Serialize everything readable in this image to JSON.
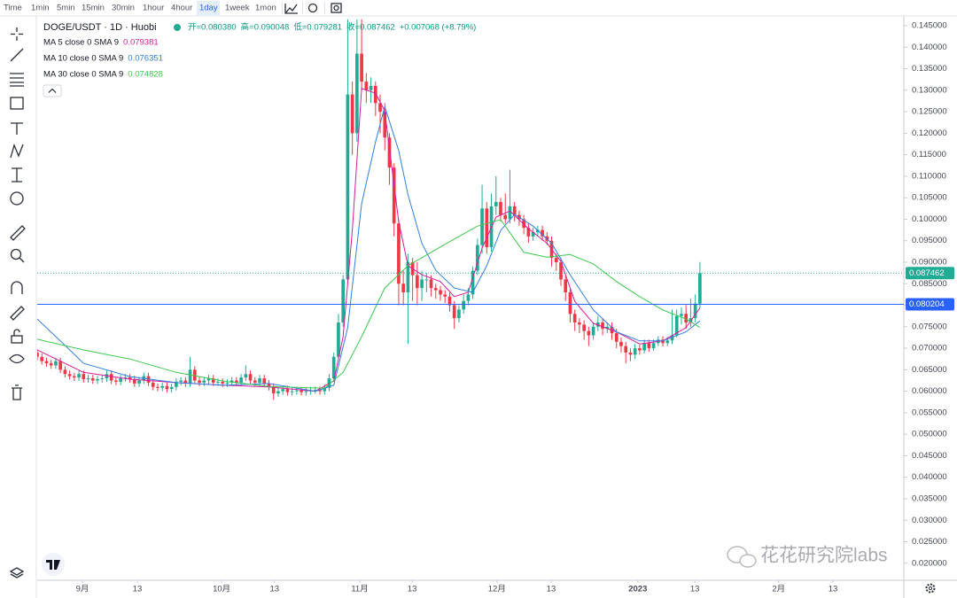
{
  "toolbar": {
    "items": [
      "Time",
      "1min",
      "5min",
      "15min",
      "30min",
      "1hour",
      "4hour",
      "1day",
      "1week",
      "1mon"
    ],
    "active": 7
  },
  "watermark": "花花研究院labs",
  "chart_data": {
    "type": "candlestick",
    "title": "DOGE/USDT · 1D · Huobi",
    "ohlc_legend": [
      "开=0.080380",
      "高=0.090048",
      "低=0.079281",
      "收=0.087462",
      "+0.007068 (+8.79%)"
    ],
    "up_color": "#22ab94",
    "down_color": "#f23645",
    "grid": false,
    "open": [
      0.069,
      0.068,
      0.067,
      0.0665,
      0.066,
      0.067,
      0.065,
      0.064,
      0.0635,
      0.0632,
      0.064,
      0.0628,
      0.063,
      0.0625,
      0.0628,
      0.063,
      0.064,
      0.0625,
      0.0622,
      0.063,
      0.0632,
      0.0628,
      0.0618,
      0.0625,
      0.0635,
      0.062,
      0.061,
      0.0608,
      0.0612,
      0.0605,
      0.061,
      0.0622,
      0.0625,
      0.0618,
      0.065,
      0.0625,
      0.062,
      0.0625,
      0.063,
      0.062,
      0.0622,
      0.0618,
      0.062,
      0.0625,
      0.062,
      0.0632,
      0.064,
      0.0625,
      0.062,
      0.063,
      0.0618,
      0.061,
      0.0595,
      0.06,
      0.0605,
      0.0598,
      0.06,
      0.0602,
      0.0598,
      0.06,
      0.0602,
      0.0603,
      0.06,
      0.0608,
      0.063,
      0.068,
      0.076,
      0.086,
      0.129,
      0.12,
      0.1385,
      0.132,
      0.13,
      0.131,
      0.127,
      0.125,
      0.119,
      0.112,
      0.099,
      0.085,
      0.083,
      0.09,
      0.087,
      0.084,
      0.086,
      0.086,
      0.084,
      0.0835,
      0.0825,
      0.082,
      0.08,
      0.077,
      0.079,
      0.081,
      0.0825,
      0.088,
      0.094,
      0.1025,
      0.0935,
      0.103,
      0.104,
      0.101,
      0.1,
      0.103,
      0.101,
      0.1,
      0.098,
      0.096,
      0.097,
      0.0975,
      0.096,
      0.095,
      0.091,
      0.09,
      0.086,
      0.083,
      0.078,
      0.076,
      0.0755,
      0.074,
      0.073,
      0.075,
      0.076,
      0.0745,
      0.075,
      0.0735,
      0.0715,
      0.0705,
      0.069,
      0.0685,
      0.07,
      0.0695,
      0.0712,
      0.07,
      0.0712,
      0.072,
      0.0712,
      0.0718,
      0.073,
      0.0775,
      0.078,
      0.076,
      0.077,
      0.08038
    ],
    "high": [
      0.0698,
      0.0688,
      0.0678,
      0.0673,
      0.0678,
      0.0678,
      0.0658,
      0.0648,
      0.0643,
      0.0648,
      0.0648,
      0.0638,
      0.0638,
      0.0636,
      0.0638,
      0.0648,
      0.0648,
      0.0633,
      0.0638,
      0.064,
      0.064,
      0.0636,
      0.0633,
      0.0643,
      0.0643,
      0.0628,
      0.0618,
      0.062,
      0.062,
      0.0618,
      0.063,
      0.0633,
      0.0633,
      0.068,
      0.0658,
      0.0633,
      0.0633,
      0.0638,
      0.0638,
      0.063,
      0.063,
      0.0628,
      0.0633,
      0.0633,
      0.064,
      0.066,
      0.0648,
      0.0633,
      0.0638,
      0.0638,
      0.0626,
      0.0618,
      0.0608,
      0.0613,
      0.0613,
      0.0608,
      0.061,
      0.061,
      0.0608,
      0.061,
      0.0611,
      0.0611,
      0.0616,
      0.064,
      0.069,
      0.078,
      0.087,
      0.1465,
      0.132,
      0.1465,
      0.1465,
      0.134,
      0.133,
      0.132,
      0.129,
      0.127,
      0.12,
      0.113,
      0.1,
      0.088,
      0.092,
      0.091,
      0.09,
      0.088,
      0.0875,
      0.087,
      0.085,
      0.0845,
      0.0835,
      0.083,
      0.081,
      0.08,
      0.0825,
      0.084,
      0.089,
      0.0955,
      0.108,
      0.104,
      0.106,
      0.11,
      0.105,
      0.106,
      0.1115,
      0.104,
      0.102,
      0.101,
      0.099,
      0.098,
      0.0985,
      0.0985,
      0.097,
      0.096,
      0.092,
      0.091,
      0.087,
      0.084,
      0.079,
      0.077,
      0.0765,
      0.075,
      0.076,
      0.0775,
      0.077,
      0.076,
      0.076,
      0.0745,
      0.0725,
      0.0715,
      0.07,
      0.071,
      0.0708,
      0.072,
      0.072,
      0.072,
      0.0728,
      0.0728,
      0.0726,
      0.079,
      0.079,
      0.0795,
      0.08,
      0.0815,
      0.0825,
      0.090048
    ],
    "low": [
      0.0672,
      0.0662,
      0.0657,
      0.0652,
      0.0652,
      0.0642,
      0.0632,
      0.0627,
      0.0624,
      0.0624,
      0.062,
      0.062,
      0.0617,
      0.0617,
      0.062,
      0.0622,
      0.0617,
      0.0614,
      0.0614,
      0.0622,
      0.062,
      0.061,
      0.061,
      0.0617,
      0.0612,
      0.0602,
      0.06,
      0.06,
      0.0597,
      0.0597,
      0.0602,
      0.0614,
      0.061,
      0.061,
      0.0617,
      0.0612,
      0.0612,
      0.0617,
      0.0612,
      0.0612,
      0.061,
      0.061,
      0.0612,
      0.0612,
      0.0612,
      0.0624,
      0.0617,
      0.0612,
      0.0612,
      0.061,
      0.0602,
      0.058,
      0.0587,
      0.0592,
      0.059,
      0.059,
      0.0592,
      0.059,
      0.059,
      0.0592,
      0.0594,
      0.0592,
      0.0592,
      0.06,
      0.0622,
      0.0672,
      0.075,
      0.085,
      0.115,
      0.118,
      0.13,
      0.127,
      0.127,
      0.124,
      0.12,
      0.116,
      0.108,
      0.096,
      0.08,
      0.08,
      0.071,
      0.081,
      0.08,
      0.081,
      0.083,
      0.082,
      0.0815,
      0.081,
      0.0805,
      0.0785,
      0.0745,
      0.076,
      0.078,
      0.08,
      0.0815,
      0.087,
      0.092,
      0.092,
      0.0925,
      0.101,
      0.0995,
      0.099,
      0.099,
      0.0995,
      0.0985,
      0.0965,
      0.0945,
      0.095,
      0.096,
      0.095,
      0.094,
      0.089,
      0.088,
      0.0845,
      0.081,
      0.076,
      0.074,
      0.0735,
      0.072,
      0.0705,
      0.072,
      0.074,
      0.073,
      0.0735,
      0.072,
      0.07,
      0.069,
      0.0665,
      0.067,
      0.0675,
      0.0685,
      0.0688,
      0.0692,
      0.0694,
      0.0705,
      0.0704,
      0.0705,
      0.071,
      0.0725,
      0.0755,
      0.0745,
      0.075,
      0.076,
      0.079281
    ],
    "close": [
      0.068,
      0.067,
      0.0665,
      0.066,
      0.067,
      0.065,
      0.064,
      0.0635,
      0.0632,
      0.064,
      0.0628,
      0.063,
      0.0625,
      0.0628,
      0.063,
      0.064,
      0.0625,
      0.0622,
      0.063,
      0.0632,
      0.0628,
      0.0618,
      0.0625,
      0.0635,
      0.062,
      0.061,
      0.0608,
      0.0612,
      0.0605,
      0.061,
      0.0622,
      0.0625,
      0.0618,
      0.065,
      0.0625,
      0.062,
      0.0625,
      0.063,
      0.062,
      0.0622,
      0.0618,
      0.062,
      0.0625,
      0.062,
      0.0632,
      0.064,
      0.0625,
      0.062,
      0.063,
      0.0618,
      0.061,
      0.0595,
      0.06,
      0.0605,
      0.0598,
      0.06,
      0.0602,
      0.0598,
      0.06,
      0.0602,
      0.0603,
      0.06,
      0.0608,
      0.063,
      0.068,
      0.076,
      0.086,
      0.129,
      0.12,
      0.1385,
      0.132,
      0.13,
      0.131,
      0.127,
      0.125,
      0.119,
      0.112,
      0.099,
      0.085,
      0.083,
      0.09,
      0.087,
      0.084,
      0.086,
      0.086,
      0.084,
      0.0835,
      0.0825,
      0.082,
      0.08,
      0.077,
      0.079,
      0.081,
      0.0825,
      0.088,
      0.094,
      0.1025,
      0.0935,
      0.103,
      0.104,
      0.101,
      0.1,
      0.103,
      0.101,
      0.1,
      0.098,
      0.096,
      0.097,
      0.0975,
      0.096,
      0.095,
      0.091,
      0.09,
      0.086,
      0.083,
      0.078,
      0.076,
      0.0755,
      0.074,
      0.073,
      0.075,
      0.076,
      0.0745,
      0.075,
      0.0735,
      0.0715,
      0.0705,
      0.069,
      0.0685,
      0.07,
      0.0695,
      0.0712,
      0.07,
      0.0712,
      0.072,
      0.0712,
      0.0718,
      0.073,
      0.0775,
      0.078,
      0.076,
      0.077,
      0.0804,
      0.087462
    ],
    "ma_lines": [
      {
        "name": "MA 5 close 0 SMA 9",
        "color": "#d81b9c",
        "last_value": 0.079381,
        "x": [
          0,
          10,
          20,
          30,
          40,
          50,
          60,
          64,
          66,
          68,
          70,
          73,
          75,
          78,
          80,
          83,
          87,
          90,
          93,
          96,
          99,
          102,
          106,
          110,
          113,
          116,
          120,
          125,
          130,
          135,
          140,
          143
        ],
        "values": [
          0.0696,
          0.0644,
          0.0628,
          0.062,
          0.0614,
          0.061,
          0.06,
          0.0624,
          0.0727,
          0.0974,
          0.1304,
          0.1293,
          0.1252,
          0.0995,
          0.0892,
          0.0871,
          0.0855,
          0.082,
          0.083,
          0.0933,
          0.1005,
          0.1019,
          0.0978,
          0.0944,
          0.0902,
          0.0809,
          0.0758,
          0.0738,
          0.071,
          0.0717,
          0.0748,
          0.079381
        ]
      },
      {
        "name": "MA 10 close 0 SMA 9",
        "color": "#2f7fe0",
        "last_value": 0.076351,
        "x": [
          0,
          5,
          10,
          20,
          30,
          40,
          50,
          60,
          64,
          67,
          70,
          73,
          75,
          78,
          80,
          83,
          86,
          90,
          94,
          97,
          100,
          103,
          107,
          111,
          115,
          120,
          125,
          130,
          135,
          140,
          143
        ],
        "values": [
          0.0768,
          0.0717,
          0.0665,
          0.0634,
          0.062,
          0.0614,
          0.0618,
          0.06,
          0.0614,
          0.0748,
          0.1036,
          0.118,
          0.1262,
          0.116,
          0.1057,
          0.0944,
          0.0881,
          0.084,
          0.083,
          0.0892,
          0.0974,
          0.1011,
          0.0984,
          0.0944,
          0.0871,
          0.0789,
          0.0738,
          0.0717,
          0.0717,
          0.0738,
          0.076351
        ]
      },
      {
        "name": "MA 30 close 0 SMA 9",
        "color": "#3ec94f",
        "last_value": 0.074828,
        "x": [
          0,
          10,
          20,
          30,
          40,
          50,
          62,
          66,
          70,
          75,
          80,
          85,
          90,
          95,
          100,
          105,
          110,
          115,
          120,
          125,
          130,
          135,
          140,
          143
        ],
        "values": [
          0.0721,
          0.0696,
          0.0675,
          0.0644,
          0.0624,
          0.0611,
          0.0607,
          0.0644,
          0.0727,
          0.084,
          0.0892,
          0.0923,
          0.0954,
          0.0984,
          0.0999,
          0.0923,
          0.0912,
          0.0918,
          0.0896,
          0.0855,
          0.082,
          0.0789,
          0.0768,
          0.074828
        ]
      }
    ],
    "hline": {
      "value": 0.080204,
      "color": "#2962ff"
    },
    "xlim": [
      0,
      187
    ],
    "xticks": [
      {
        "value": 9.75,
        "label": "9月"
      },
      {
        "value": 21.6,
        "label": "13"
      },
      {
        "value": 39.8,
        "label": "10月"
      },
      {
        "value": 51.2,
        "label": "13"
      },
      {
        "value": 69.6,
        "label": "11月"
      },
      {
        "value": 80.9,
        "label": "13"
      },
      {
        "value": 99.2,
        "label": "12月"
      },
      {
        "value": 110.9,
        "label": "13"
      },
      {
        "value": 129.6,
        "label": "2023"
      },
      {
        "value": 141.9,
        "label": "13"
      },
      {
        "value": 160.0,
        "label": "2月"
      },
      {
        "value": 171.7,
        "label": "13"
      }
    ],
    "ylim": [
      0.01604,
      0.14727
    ],
    "yticks": [
      {
        "value": 0.02,
        "label": "0.020000"
      },
      {
        "value": 0.025,
        "label": "0.025000"
      },
      {
        "value": 0.03,
        "label": "0.030000"
      },
      {
        "value": 0.035,
        "label": "0.035000"
      },
      {
        "value": 0.04,
        "label": "0.040000"
      },
      {
        "value": 0.045,
        "label": "0.045000"
      },
      {
        "value": 0.05,
        "label": "0.050000"
      },
      {
        "value": 0.055,
        "label": "0.055000"
      },
      {
        "value": 0.06,
        "label": "0.060000"
      },
      {
        "value": 0.065,
        "label": "0.065000"
      },
      {
        "value": 0.07,
        "label": "0.070000"
      },
      {
        "value": 0.075,
        "label": "0.075000"
      },
      {
        "value": 0.08,
        "label": "0.080000"
      },
      {
        "value": 0.085,
        "label": "0.085000"
      },
      {
        "value": 0.09,
        "label": "0.090000"
      },
      {
        "value": 0.095,
        "label": "0.095000"
      },
      {
        "value": 0.1,
        "label": "0.100000"
      },
      {
        "value": 0.105,
        "label": "0.105000"
      },
      {
        "value": 0.11,
        "label": "0.110000"
      },
      {
        "value": 0.115,
        "label": "0.115000"
      },
      {
        "value": 0.12,
        "label": "0.120000"
      },
      {
        "value": 0.125,
        "label": "0.125000"
      },
      {
        "value": 0.13,
        "label": "0.130000"
      },
      {
        "value": 0.135,
        "label": "0.135000"
      },
      {
        "value": 0.14,
        "label": "0.140000"
      },
      {
        "value": 0.145,
        "label": "0.145000"
      }
    ]
  }
}
